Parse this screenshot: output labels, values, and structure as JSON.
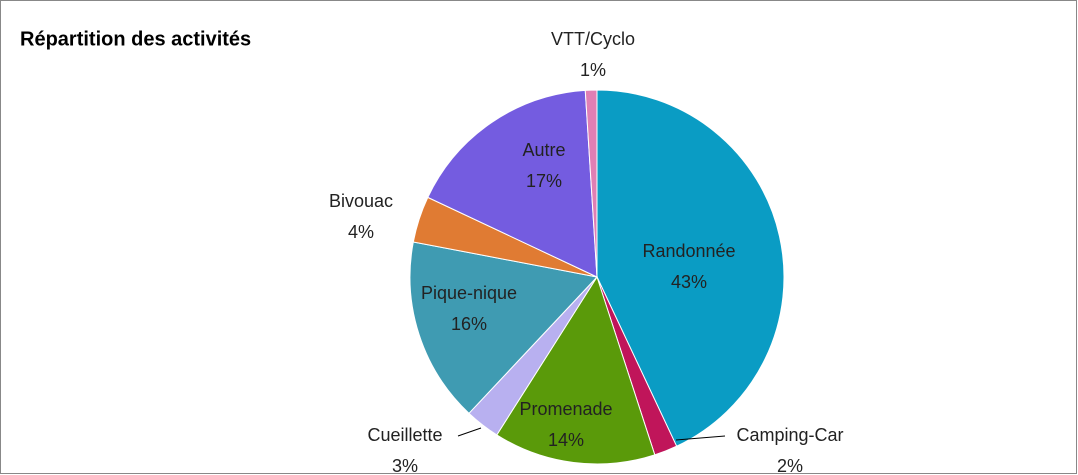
{
  "chart_data": {
    "type": "pie",
    "title": "Répartition des activités",
    "categories": [
      "Randonnée",
      "Camping-Car",
      "Promenade",
      "Cueillette",
      "Pique-nique",
      "Bivouac",
      "Autre",
      "VTT/Cyclo"
    ],
    "values": [
      43,
      2,
      14,
      3,
      16,
      4,
      17,
      1
    ],
    "value_labels": [
      "43%",
      "2%",
      "14%",
      "3%",
      "16%",
      "4%",
      "17%",
      "1%"
    ],
    "colors": [
      "#0a9cc4",
      "#c0155a",
      "#5a9a0a",
      "#b8b0f0",
      "#3f9bb2",
      "#e07b33",
      "#745ce0",
      "#e07fb4"
    ]
  }
}
